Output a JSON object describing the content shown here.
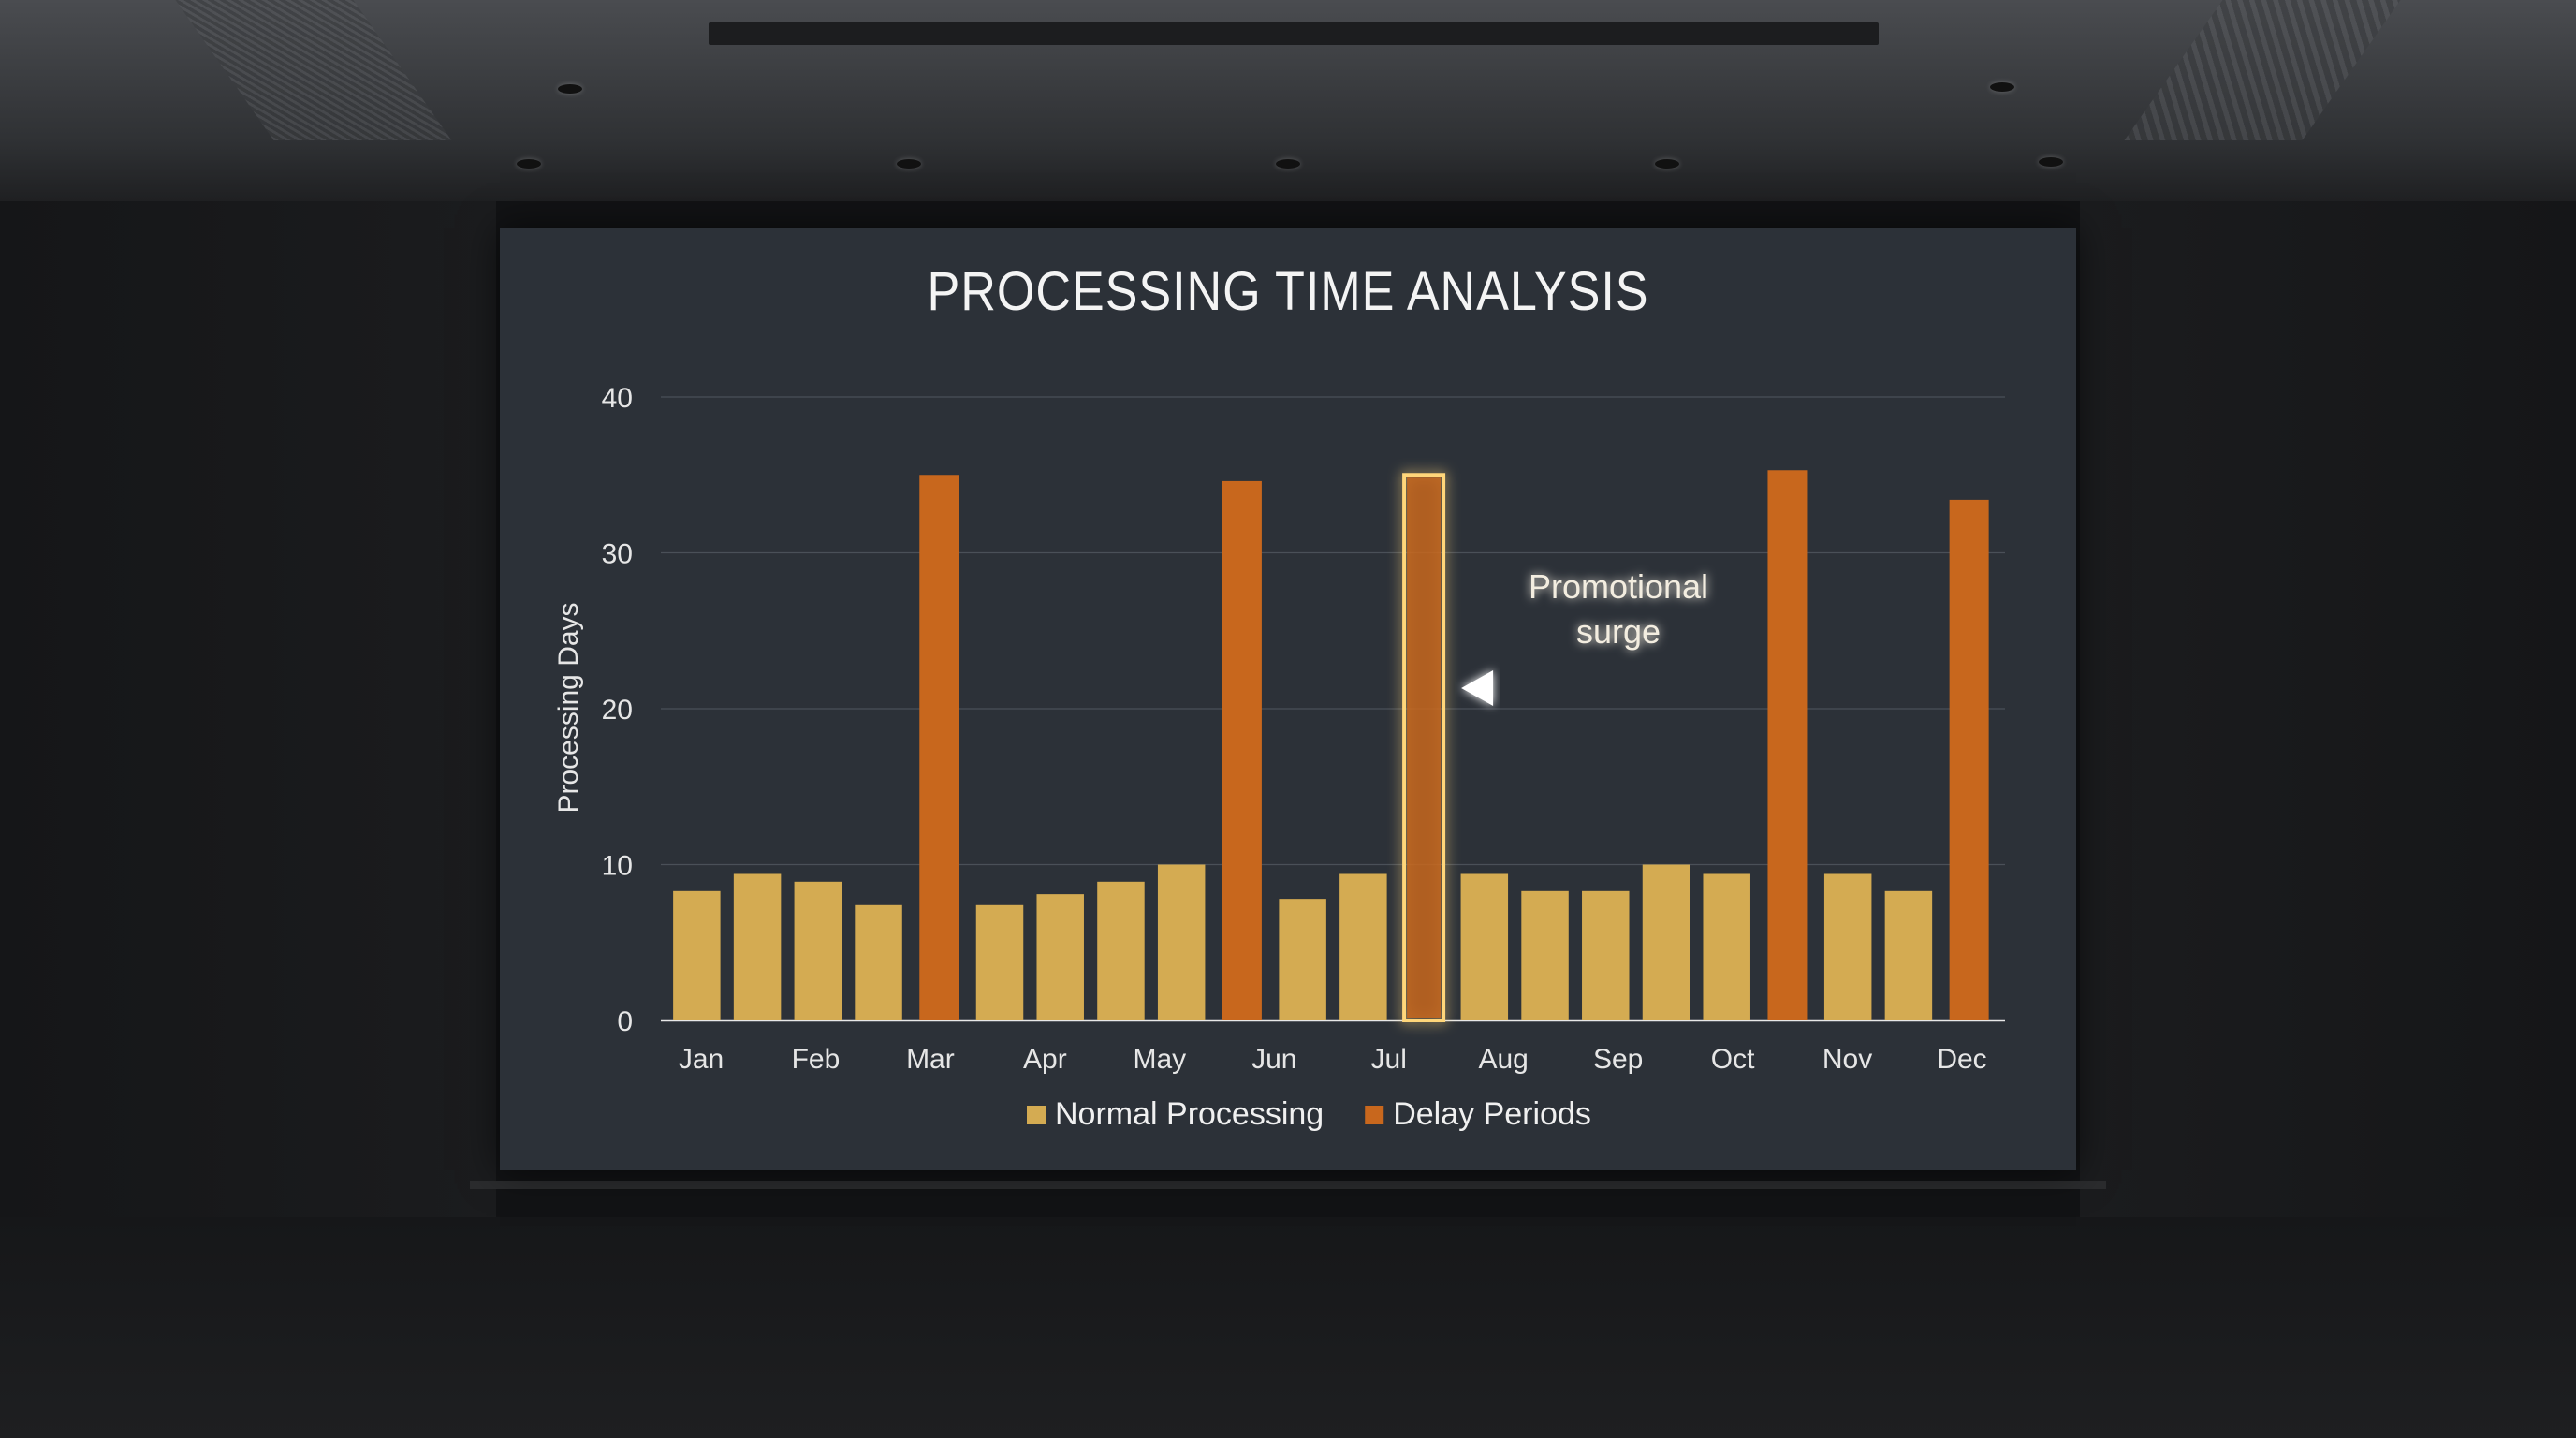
{
  "chart_data": {
    "type": "bar",
    "title": "PROCESSING TIME ANALYSIS",
    "xlabel": "",
    "ylabel": "Processing Days",
    "ylim": [
      0,
      40
    ],
    "yticks": [
      0,
      10,
      20,
      30,
      40
    ],
    "grid": true,
    "legend_position": "bottom",
    "month_labels": [
      "Jan",
      "Feb",
      "Mar",
      "Apr",
      "May",
      "Jun",
      "Jul",
      "Aug",
      "Sep",
      "Oct",
      "Nov",
      "Dec"
    ],
    "bars": [
      {
        "value": 8.3,
        "series": "Normal Processing"
      },
      {
        "value": 9.4,
        "series": "Normal Processing"
      },
      {
        "value": 8.9,
        "series": "Normal Processing"
      },
      {
        "value": 7.4,
        "series": "Normal Processing"
      },
      {
        "value": 35.0,
        "series": "Delay Periods"
      },
      {
        "value": 7.4,
        "series": "Normal Processing"
      },
      {
        "value": 8.1,
        "series": "Normal Processing"
      },
      {
        "value": 8.9,
        "series": "Normal Processing"
      },
      {
        "value": 10.0,
        "series": "Normal Processing"
      },
      {
        "value": 34.6,
        "series": "Delay Periods"
      },
      {
        "value": 7.8,
        "series": "Normal Processing"
      },
      {
        "value": 9.4,
        "series": "Normal Processing"
      },
      {
        "value": 35.0,
        "series": "Delay Periods",
        "highlighted": true
      },
      {
        "value": 9.4,
        "series": "Normal Processing"
      },
      {
        "value": 8.3,
        "series": "Normal Processing"
      },
      {
        "value": 8.3,
        "series": "Normal Processing"
      },
      {
        "value": 10.0,
        "series": "Normal Processing"
      },
      {
        "value": 9.4,
        "series": "Normal Processing"
      },
      {
        "value": 35.3,
        "series": "Delay Periods"
      },
      {
        "value": 9.4,
        "series": "Normal Processing"
      },
      {
        "value": 8.3,
        "series": "Normal Processing"
      },
      {
        "value": 33.4,
        "series": "Delay Periods"
      }
    ],
    "series": [
      {
        "name": "Normal Processing",
        "color": "#d4ab52"
      },
      {
        "name": "Delay Periods",
        "color": "#c8671d"
      }
    ],
    "annotation": {
      "lines": [
        "Promotional",
        "surge"
      ],
      "target": "Jul"
    }
  }
}
